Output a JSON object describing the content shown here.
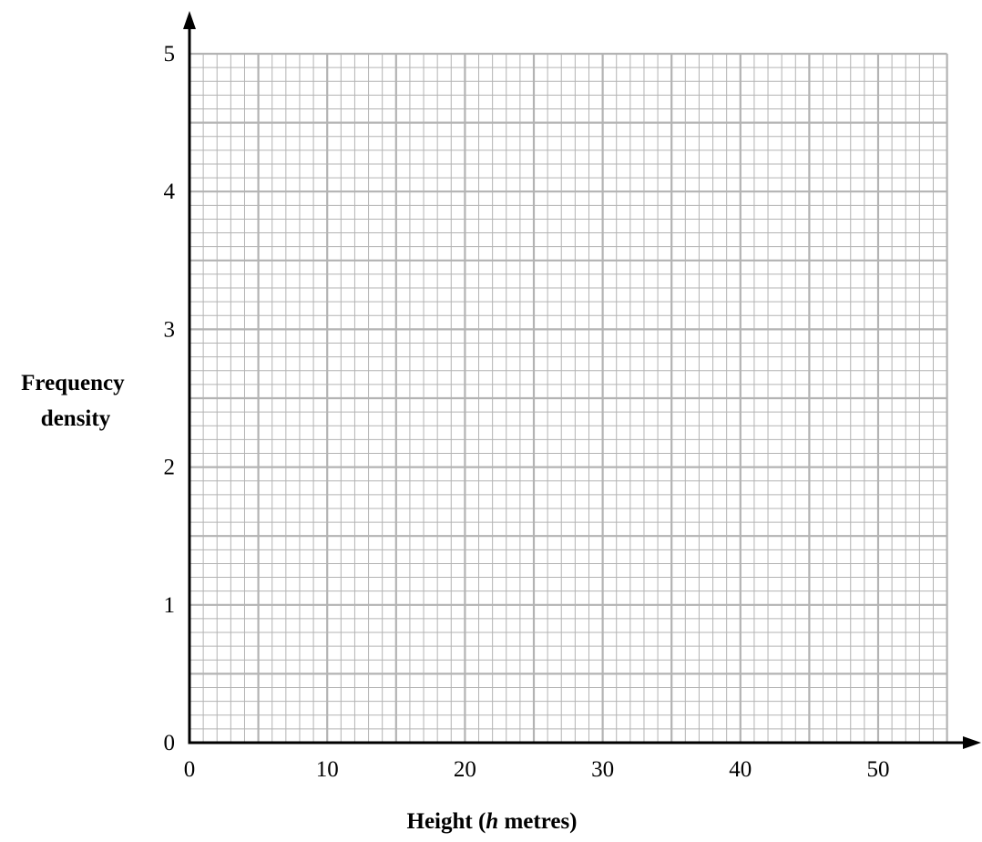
{
  "chart_data": {
    "type": "bar",
    "title": "",
    "xlabel_parts": {
      "before": "Height (",
      "var": "h",
      "after": " metres)"
    },
    "ylabel_lines": [
      "Frequency",
      "density"
    ],
    "xlim": [
      0,
      55
    ],
    "ylim": [
      0,
      5
    ],
    "x_ticks": [
      0,
      10,
      20,
      30,
      40,
      50
    ],
    "y_ticks": [
      0,
      1,
      2,
      3,
      4,
      5
    ],
    "grid": true,
    "grid_minor_x": 1,
    "grid_minor_y": 0.1,
    "series": []
  },
  "colors": {
    "grid": "#b3b3b3",
    "axis": "#000000"
  }
}
